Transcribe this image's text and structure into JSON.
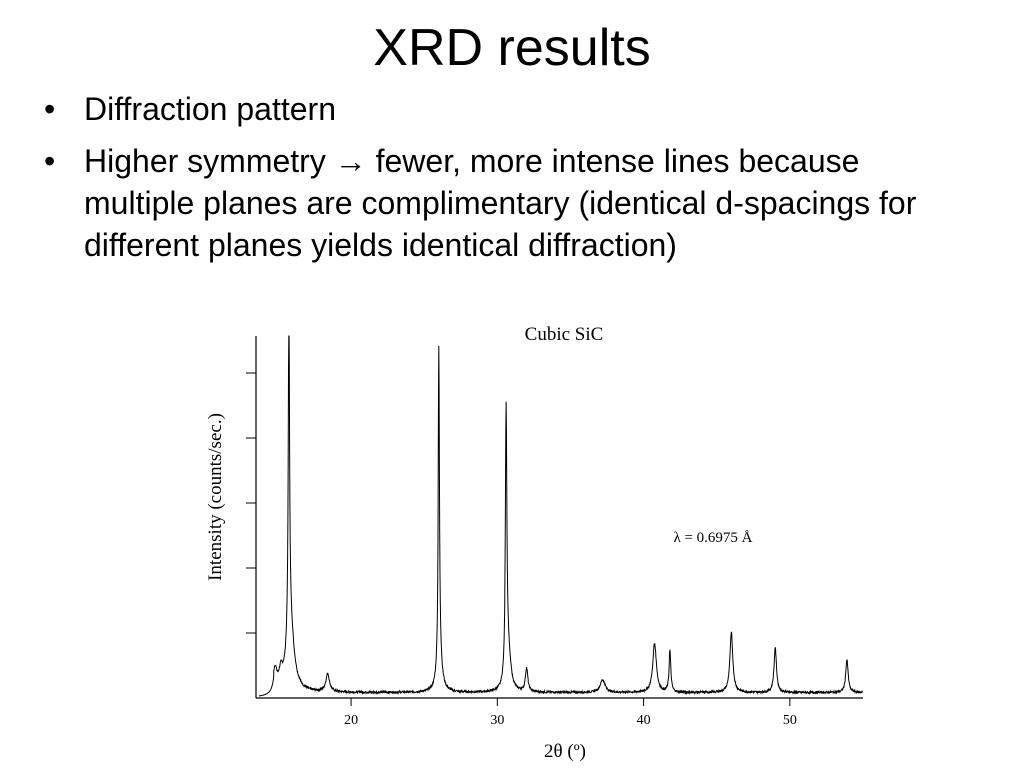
{
  "slide": {
    "title": "XRD results",
    "bullets": [
      {
        "text": "Diffraction pattern"
      },
      {
        "pre": "Higher symmetry",
        "arrow": "→",
        "post": "fewer, more intense lines because multiple planes are complimentary (identical d-spacings for different planes yields identical diffraction)"
      }
    ]
  },
  "chart_data": {
    "type": "line",
    "title": "Cubic SiC",
    "xlabel": "2θ (º)",
    "ylabel": "Intensity (counts/sec.)",
    "annotation": "λ = 0.6975 Å",
    "x_ticks": [
      20,
      30,
      40,
      50
    ],
    "xlim": [
      13.5,
      55
    ],
    "ylim": [
      0,
      100
    ],
    "y_tick_count": 6,
    "grid": false,
    "baseline": 1.5,
    "peaks": [
      {
        "x": 14.8,
        "height": 5.5,
        "width": 0.15
      },
      {
        "x": 15.2,
        "height": 4,
        "width": 0.15
      },
      {
        "x": 15.75,
        "height": 100,
        "width": 0.05
      },
      {
        "x": 15.85,
        "height": 18,
        "width": 0.3
      },
      {
        "x": 18.4,
        "height": 5,
        "width": 0.15
      },
      {
        "x": 26.0,
        "height": 88,
        "width": 0.05
      },
      {
        "x": 26.05,
        "height": 8,
        "width": 0.2
      },
      {
        "x": 30.6,
        "height": 74,
        "width": 0.06
      },
      {
        "x": 30.75,
        "height": 10,
        "width": 0.2
      },
      {
        "x": 32.0,
        "height": 6.5,
        "width": 0.1
      },
      {
        "x": 37.2,
        "height": 3.5,
        "width": 0.2
      },
      {
        "x": 40.75,
        "height": 13.5,
        "width": 0.15
      },
      {
        "x": 41.8,
        "height": 11.5,
        "width": 0.07
      },
      {
        "x": 46.0,
        "height": 16.5,
        "width": 0.12
      },
      {
        "x": 49.0,
        "height": 12.5,
        "width": 0.1
      },
      {
        "x": 53.9,
        "height": 9,
        "width": 0.1
      }
    ]
  }
}
